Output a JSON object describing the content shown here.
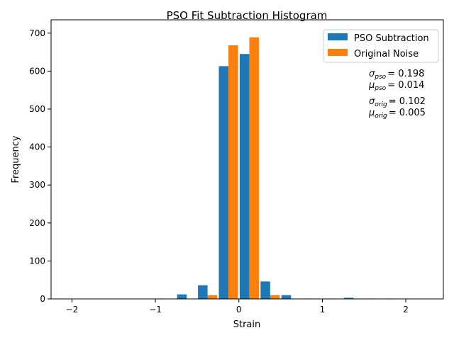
{
  "chart_data": {
    "type": "bar",
    "title": "PSO Fit Subtraction Histogram",
    "xlabel": "Strain",
    "ylabel": "Frequency",
    "xlim": [
      -2.25,
      2.45
    ],
    "ylim": [
      0,
      735
    ],
    "xticks": [
      -2,
      -1,
      0,
      1,
      2
    ],
    "xtick_labels": [
      "−2",
      "−1",
      "0",
      "1",
      "2"
    ],
    "yticks": [
      0,
      100,
      200,
      300,
      400,
      500,
      600,
      700
    ],
    "yticklabels": [
      "0",
      "100",
      "200",
      "300",
      "400",
      "500",
      "600",
      "700"
    ],
    "bin_edges": [
      -2.0,
      -1.75,
      -1.5,
      -1.25,
      -1.0,
      -0.75,
      -0.5,
      -0.25,
      0.0,
      0.25,
      0.5,
      0.75,
      1.0,
      1.25,
      1.5,
      1.75,
      2.0,
      2.25
    ],
    "series": [
      {
        "name": "PSO Subtraction",
        "color": "#1f77b4",
        "values": [
          0,
          0,
          0,
          0,
          1,
          12,
          36,
          613,
          645,
          46,
          10,
          1,
          1,
          3,
          1,
          1,
          0
        ]
      },
      {
        "name": "Original Noise",
        "color": "#ff7f0e",
        "values": [
          0,
          0,
          0,
          0,
          0,
          0,
          10,
          668,
          689,
          10,
          0,
          0,
          0,
          0,
          0,
          0,
          0
        ]
      }
    ],
    "legend_position": "top-right",
    "grid": false,
    "annotations": [
      {
        "symbol": "σ",
        "subscript": "pso",
        "value": "= 0.198"
      },
      {
        "symbol": "μ",
        "subscript": "pso",
        "value": "= 0.014"
      },
      {
        "symbol": "σ",
        "subscript": "orig",
        "value": "= 0.102"
      },
      {
        "symbol": "μ",
        "subscript": "orig",
        "value": "= 0.005"
      }
    ]
  }
}
